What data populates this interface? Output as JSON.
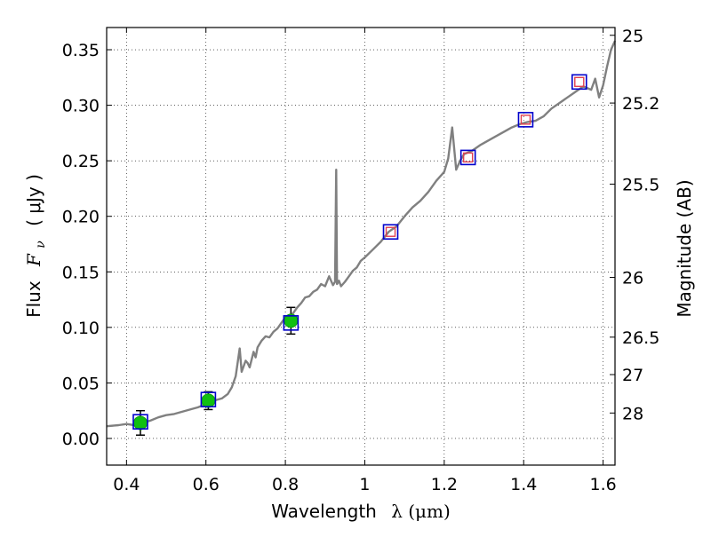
{
  "chart_data": {
    "type": "scatter",
    "title": "",
    "xlabel": "Wavelength",
    "xlabel_symbol": "λ (μm)",
    "ylabel": "Flux",
    "ylabel_symbol": "F",
    "ylabel_subscript": "ν",
    "ylabel_unit": "( μJy )",
    "y2label": "Magnitude (AB)",
    "xlim": [
      0.35,
      1.63
    ],
    "ylim": [
      -0.024,
      0.37
    ],
    "grid": true,
    "x_ticks": [
      {
        "value": 0.4,
        "label": "0.4"
      },
      {
        "value": 0.6,
        "label": "0.6"
      },
      {
        "value": 0.8,
        "label": "0.8"
      },
      {
        "value": 1.0,
        "label": "1"
      },
      {
        "value": 1.2,
        "label": "1.2"
      },
      {
        "value": 1.4,
        "label": "1.4"
      },
      {
        "value": 1.6,
        "label": "1.6"
      }
    ],
    "y_ticks": [
      {
        "value": 0.0,
        "label": "0.00"
      },
      {
        "value": 0.05,
        "label": "0.05"
      },
      {
        "value": 0.1,
        "label": "0.10"
      },
      {
        "value": 0.15,
        "label": "0.15"
      },
      {
        "value": 0.2,
        "label": "0.20"
      },
      {
        "value": 0.25,
        "label": "0.25"
      },
      {
        "value": 0.3,
        "label": "0.30"
      },
      {
        "value": 0.35,
        "label": "0.35"
      }
    ],
    "mag_ticks": [
      {
        "label": "25",
        "flux": 0.363
      },
      {
        "label": "25.2",
        "flux": 0.302
      },
      {
        "label": "25.5",
        "flux": 0.229
      },
      {
        "label": "26",
        "flux": 0.145
      },
      {
        "label": "26.5",
        "flux": 0.0912
      },
      {
        "label": "27",
        "flux": 0.0575
      },
      {
        "label": "28",
        "flux": 0.0229
      }
    ],
    "series": [
      {
        "kind": "line",
        "color": "#808080",
        "x": [
          0.35,
          0.38,
          0.4,
          0.42,
          0.44,
          0.46,
          0.48,
          0.5,
          0.52,
          0.54,
          0.56,
          0.58,
          0.6,
          0.62,
          0.64,
          0.655,
          0.665,
          0.675,
          0.685,
          0.69,
          0.7,
          0.705,
          0.71,
          0.72,
          0.725,
          0.73,
          0.74,
          0.75,
          0.76,
          0.77,
          0.78,
          0.79,
          0.8,
          0.81,
          0.82,
          0.83,
          0.84,
          0.85,
          0.86,
          0.87,
          0.88,
          0.89,
          0.9,
          0.91,
          0.92,
          0.925,
          0.928,
          0.93,
          0.935,
          0.94,
          0.95,
          0.96,
          0.97,
          0.98,
          0.99,
          1.0,
          1.02,
          1.04,
          1.06,
          1.08,
          1.1,
          1.12,
          1.14,
          1.16,
          1.18,
          1.2,
          1.21,
          1.22,
          1.23,
          1.24,
          1.25,
          1.27,
          1.29,
          1.31,
          1.33,
          1.35,
          1.37,
          1.39,
          1.41,
          1.43,
          1.45,
          1.47,
          1.49,
          1.51,
          1.53,
          1.55,
          1.57,
          1.58,
          1.59,
          1.6,
          1.61,
          1.62,
          1.63
        ],
        "y": [
          0.011,
          0.012,
          0.013,
          0.012,
          0.014,
          0.016,
          0.019,
          0.021,
          0.022,
          0.024,
          0.026,
          0.028,
          0.031,
          0.034,
          0.036,
          0.04,
          0.046,
          0.056,
          0.081,
          0.06,
          0.07,
          0.068,
          0.064,
          0.078,
          0.073,
          0.082,
          0.088,
          0.092,
          0.091,
          0.096,
          0.099,
          0.104,
          0.109,
          0.108,
          0.113,
          0.118,
          0.122,
          0.127,
          0.128,
          0.132,
          0.134,
          0.139,
          0.137,
          0.146,
          0.138,
          0.141,
          0.242,
          0.139,
          0.142,
          0.137,
          0.141,
          0.146,
          0.151,
          0.154,
          0.16,
          0.163,
          0.17,
          0.177,
          0.186,
          0.191,
          0.2,
          0.208,
          0.214,
          0.222,
          0.232,
          0.24,
          0.252,
          0.28,
          0.242,
          0.25,
          0.256,
          0.259,
          0.264,
          0.268,
          0.272,
          0.276,
          0.28,
          0.283,
          0.285,
          0.286,
          0.29,
          0.297,
          0.302,
          0.307,
          0.312,
          0.317,
          0.314,
          0.324,
          0.307,
          0.318,
          0.335,
          0.35,
          0.358
        ]
      },
      {
        "kind": "points",
        "name": "",
        "color": "#10c010",
        "x": [
          0.435,
          0.606,
          0.814
        ],
        "y": [
          0.014,
          0.034,
          0.106
        ],
        "yerr": [
          0.011,
          0.008,
          0.012
        ]
      },
      {
        "kind": "model-squares",
        "name": "",
        "color": "#0000cc",
        "x": [
          0.435,
          0.606,
          0.814,
          1.065,
          1.26,
          1.405,
          1.54
        ],
        "y": [
          0.015,
          0.035,
          0.104,
          0.186,
          0.253,
          0.287,
          0.321
        ]
      },
      {
        "kind": "observed-squares",
        "name": "",
        "color": "#e04050",
        "x": [
          1.065,
          1.26,
          1.405,
          1.54
        ],
        "y": [
          0.186,
          0.253,
          0.287,
          0.321
        ]
      }
    ]
  }
}
